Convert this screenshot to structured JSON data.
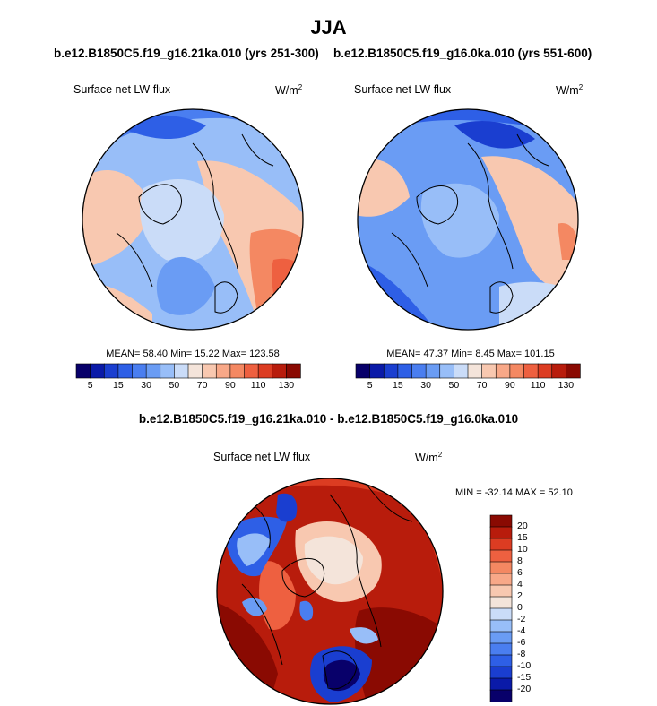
{
  "page": {
    "title": "JJA"
  },
  "chart_data": [
    {
      "type": "heatmap",
      "subtitle": "b.e12.B1850C5.f19_g16.21ka.010 (yrs 251-300)",
      "variable": "Surface net LW flux",
      "units_base": "W/m",
      "units_exp": "2",
      "stats": {
        "mean": "58.40",
        "min": "15.22",
        "max": "123.58"
      },
      "stats_text": "MEAN=  58.40  Min=  15.22  Max= 123.58",
      "projection": "north polar stereographic",
      "colorbar": {
        "levels": [
          5,
          10,
          15,
          20,
          30,
          40,
          50,
          60,
          70,
          80,
          90,
          100,
          110,
          120,
          130
        ],
        "tick_labels": [
          "5",
          "15",
          "30",
          "50",
          "70",
          "90",
          "110",
          "130"
        ]
      }
    },
    {
      "type": "heatmap",
      "subtitle": "b.e12.B1850C5.f19_g16.0ka.010 (yrs 551-600)",
      "variable": "Surface net LW flux",
      "units_base": "W/m",
      "units_exp": "2",
      "stats": {
        "mean": "47.37",
        "min": "8.45",
        "max": "101.15"
      },
      "stats_text": "MEAN=  47.37  Min=   8.45  Max= 101.15",
      "projection": "north polar stereographic",
      "colorbar": {
        "levels": [
          5,
          10,
          15,
          20,
          30,
          40,
          50,
          60,
          70,
          80,
          90,
          100,
          110,
          120,
          130
        ],
        "tick_labels": [
          "5",
          "15",
          "30",
          "50",
          "70",
          "90",
          "110",
          "130"
        ]
      }
    },
    {
      "type": "heatmap",
      "subtitle": "b.e12.B1850C5.f19_g16.21ka.010 - b.e12.B1850C5.f19_g16.0ka.010",
      "variable": "Surface net LW flux",
      "units_base": "W/m",
      "units_exp": "2",
      "stats": {
        "min": "-32.14",
        "max": "52.10"
      },
      "stats_text": "MIN = -32.14 MAX =  52.10",
      "projection": "north polar stereographic",
      "colorbar": {
        "levels": [
          20,
          15,
          10,
          8,
          6,
          4,
          2,
          0,
          -2,
          -4,
          -6,
          -8,
          -10,
          -15,
          -20
        ],
        "tick_labels": [
          "20",
          "15",
          "10",
          "8",
          "6",
          "4",
          "2",
          "0",
          "-2",
          "-4",
          "-6",
          "-8",
          "-10",
          "-15",
          "-20"
        ]
      }
    }
  ],
  "colors": {
    "scale16": [
      "#08006a",
      "#0a1aa8",
      "#1a3ed0",
      "#2e5fe6",
      "#4a7ef0",
      "#6a9cf4",
      "#98bef8",
      "#cadcf8",
      "#f4e4da",
      "#f8c8b0",
      "#f8a888",
      "#f48862",
      "#ee6040",
      "#dc3c22",
      "#b81c0c",
      "#8a0a02"
    ],
    "diff16": [
      "#8a0a02",
      "#b81c0c",
      "#dc3c22",
      "#ee6040",
      "#f48862",
      "#f8a888",
      "#f8c8b0",
      "#f4e4da",
      "#cadcf8",
      "#98bef8",
      "#6a9cf4",
      "#4a7ef0",
      "#2e5fe6",
      "#1a3ed0",
      "#0a1aa8",
      "#08006a"
    ]
  }
}
